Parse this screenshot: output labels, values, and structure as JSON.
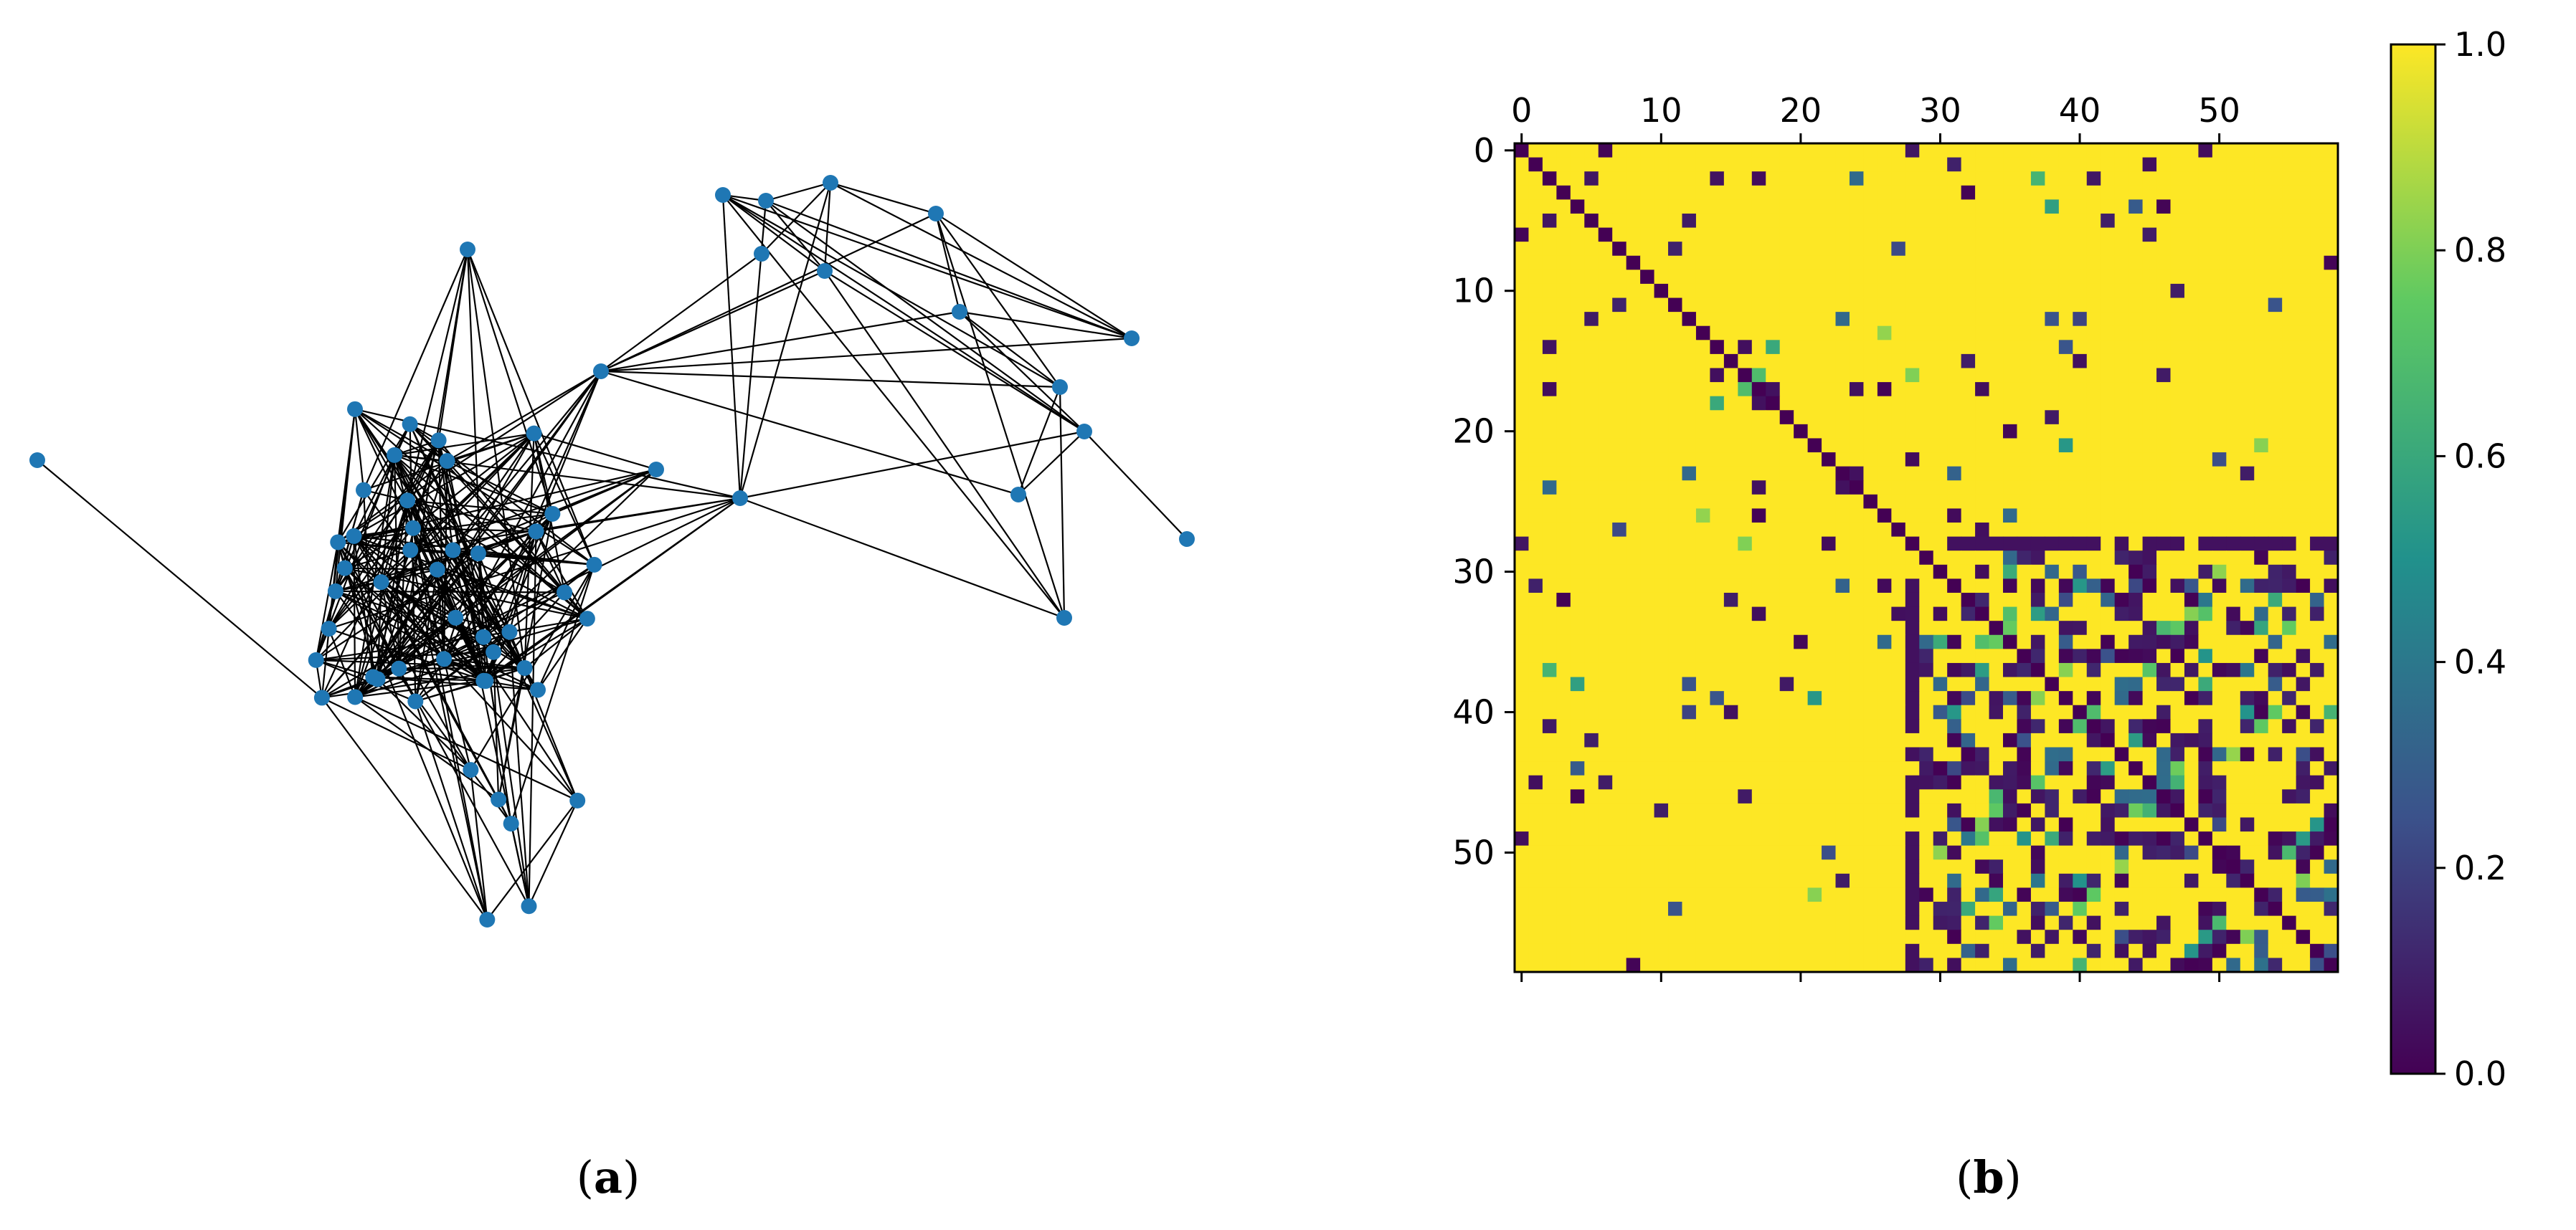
{
  "panels": {
    "a": {
      "caption_open": "(",
      "caption_letter": "a",
      "caption_close": ")"
    },
    "b": {
      "caption_open": "(",
      "caption_letter": "b",
      "caption_close": ")"
    }
  },
  "chart_data": [
    {
      "panel": "a",
      "type": "network",
      "node_color": "#1f77b4",
      "edge_color": "#000000",
      "nodes": 60,
      "structure": "one dense community of about 40 nodes, a loosely connected upper-right community of about 12 nodes, and a few isolated outliers"
    },
    {
      "panel": "b",
      "type": "heatmap",
      "size": 59,
      "xticks": [
        0,
        10,
        20,
        30,
        40,
        50
      ],
      "yticks": [
        0,
        10,
        20,
        30,
        40,
        50
      ],
      "x_axis_position": "top",
      "colormap": "viridis",
      "colormap_stops": [
        "#440154",
        "#3b528b",
        "#21918c",
        "#5ec962",
        "#fde725"
      ],
      "colorbar": {
        "range": [
          0.0,
          1.0
        ],
        "ticks": [
          "0.0",
          "0.2",
          "0.4",
          "0.6",
          "0.8",
          "1.0"
        ]
      },
      "blocks": [
        {
          "rows": [
            0,
            28
          ],
          "cols": [
            0,
            28
          ],
          "description": "mostly 1.0 with scattered low values"
        },
        {
          "rows": [
            29,
            58
          ],
          "cols": [
            29,
            58
          ],
          "description": "mixed, many values near 0.0"
        },
        {
          "rows": [
            0,
            28
          ],
          "cols": [
            29,
            58
          ],
          "description": "mostly 1.0 with scattered low values"
        }
      ],
      "diagonal": 0.0
    }
  ]
}
